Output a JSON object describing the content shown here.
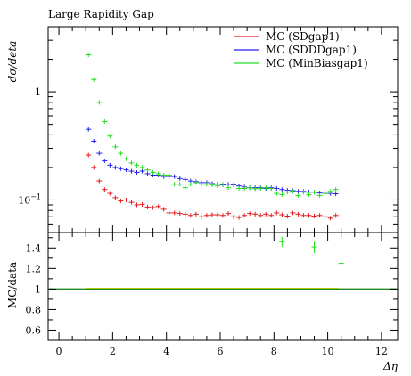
{
  "chart_data": [
    {
      "type": "scatter",
      "title": "Large Rapidity Gap",
      "ylabel": "dσ/deta",
      "xlabel": "",
      "ylim": [
        0.05,
        4
      ],
      "yscale": "log",
      "xlim": [
        -0.4,
        12.6
      ],
      "y_tick_labels": [
        "1",
        "10^−1"
      ],
      "grid": false,
      "legend_position": "top-right",
      "series": [
        {
          "name": "MC (SDgap1)",
          "color": "#e31a1c",
          "x": [
            1.1,
            1.3,
            1.5,
            1.7,
            1.9,
            2.1,
            2.3,
            2.5,
            2.7,
            2.9,
            3.1,
            3.3,
            3.5,
            3.7,
            3.9,
            4.1,
            4.3,
            4.5,
            4.7,
            4.9,
            5.1,
            5.3,
            5.5,
            5.7,
            5.9,
            6.1,
            6.3,
            6.5,
            6.7,
            6.9,
            7.1,
            7.3,
            7.5,
            7.7,
            7.9,
            8.1,
            8.3,
            8.5,
            8.7,
            8.9,
            9.1,
            9.3,
            9.5,
            9.7,
            9.9,
            10.1,
            10.3
          ],
          "y": [
            0.26,
            0.2,
            0.15,
            0.125,
            0.115,
            0.105,
            0.098,
            0.1,
            0.095,
            0.09,
            0.091,
            0.086,
            0.085,
            0.087,
            0.082,
            0.076,
            0.076,
            0.075,
            0.074,
            0.072,
            0.074,
            0.07,
            0.072,
            0.073,
            0.073,
            0.072,
            0.075,
            0.07,
            0.069,
            0.072,
            0.075,
            0.074,
            0.072,
            0.074,
            0.072,
            0.076,
            0.073,
            0.071,
            0.076,
            0.074,
            0.072,
            0.072,
            0.071,
            0.072,
            0.07,
            0.068,
            0.072
          ]
        },
        {
          "name": "MC (SDDDgap1)",
          "color": "#2222ee",
          "x": [
            1.1,
            1.3,
            1.5,
            1.7,
            1.9,
            2.1,
            2.3,
            2.5,
            2.7,
            2.9,
            3.1,
            3.3,
            3.5,
            3.7,
            3.9,
            4.1,
            4.3,
            4.5,
            4.7,
            4.9,
            5.1,
            5.3,
            5.5,
            5.7,
            5.9,
            6.1,
            6.3,
            6.5,
            6.7,
            6.9,
            7.1,
            7.3,
            7.5,
            7.7,
            7.9,
            8.1,
            8.3,
            8.5,
            8.7,
            8.9,
            9.1,
            9.3,
            9.5,
            9.7,
            9.9,
            10.1,
            10.3
          ],
          "y": [
            0.45,
            0.35,
            0.27,
            0.23,
            0.21,
            0.2,
            0.195,
            0.19,
            0.185,
            0.18,
            0.185,
            0.175,
            0.17,
            0.17,
            0.165,
            0.165,
            0.165,
            0.158,
            0.155,
            0.15,
            0.148,
            0.145,
            0.145,
            0.142,
            0.14,
            0.138,
            0.14,
            0.138,
            0.135,
            0.132,
            0.13,
            0.13,
            0.13,
            0.128,
            0.13,
            0.128,
            0.125,
            0.123,
            0.122,
            0.12,
            0.12,
            0.118,
            0.118,
            0.116,
            0.115,
            0.115,
            0.114
          ]
        },
        {
          "name": "MC (MinBiasgap1)",
          "color": "#22dd22",
          "x": [
            1.1,
            1.3,
            1.5,
            1.7,
            1.9,
            2.1,
            2.3,
            2.5,
            2.7,
            2.9,
            3.1,
            3.3,
            3.5,
            3.7,
            3.9,
            4.1,
            4.3,
            4.5,
            4.7,
            4.9,
            5.1,
            5.3,
            5.5,
            5.7,
            5.9,
            6.1,
            6.3,
            6.5,
            6.7,
            6.9,
            7.1,
            7.3,
            7.5,
            7.7,
            7.9,
            8.1,
            8.3,
            8.5,
            8.7,
            8.9,
            9.1,
            9.3,
            9.5,
            9.7,
            9.9,
            10.1,
            10.3
          ],
          "y": [
            2.2,
            1.3,
            0.8,
            0.53,
            0.39,
            0.31,
            0.27,
            0.24,
            0.22,
            0.21,
            0.2,
            0.19,
            0.18,
            0.175,
            0.17,
            0.17,
            0.14,
            0.14,
            0.13,
            0.14,
            0.145,
            0.14,
            0.14,
            0.138,
            0.135,
            0.14,
            0.13,
            0.14,
            0.128,
            0.128,
            0.13,
            0.127,
            0.128,
            0.13,
            0.128,
            0.115,
            0.112,
            0.118,
            0.12,
            0.11,
            0.118,
            0.112,
            0.118,
            0.11,
            0.115,
            0.12,
            0.125
          ]
        }
      ]
    },
    {
      "type": "scatter",
      "title": "",
      "ylabel": "MC/data",
      "xlabel": "Δη",
      "xlim": [
        -0.4,
        12.6
      ],
      "ylim": [
        0.5,
        1.55
      ],
      "x_ticks": [
        0,
        2,
        4,
        6,
        8,
        10,
        12
      ],
      "y_ticks": [
        0.6,
        0.8,
        1,
        1.2,
        1.4
      ],
      "grid": false,
      "reference": {
        "y": 1,
        "line_color": "#228b22",
        "band_color": "#ffee00",
        "band_x": [
          1,
          10.4
        ],
        "band_halfwidth": 0.012
      },
      "series": [
        {
          "color": "#22dd22",
          "x": [
            8.3,
            9.5,
            10.5
          ],
          "y": [
            1.46,
            1.41,
            1.25
          ],
          "err": [
            0.05,
            0.06,
            0.01
          ]
        }
      ]
    }
  ]
}
